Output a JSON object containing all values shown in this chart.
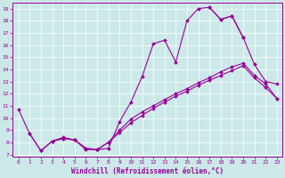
{
  "xlabel": "Windchill (Refroidissement éolien,°C)",
  "bg_color": "#cce8e8",
  "line_color": "#990099",
  "marker": "D",
  "markersize": 2.0,
  "linewidth": 0.8,
  "xlim": [
    -0.5,
    23.5
  ],
  "ylim": [
    6.8,
    19.5
  ],
  "xticks": [
    0,
    1,
    2,
    3,
    4,
    5,
    6,
    7,
    8,
    9,
    10,
    11,
    12,
    13,
    14,
    15,
    16,
    17,
    18,
    19,
    20,
    21,
    22,
    23
  ],
  "yticks": [
    7,
    8,
    9,
    10,
    11,
    12,
    13,
    14,
    15,
    16,
    17,
    18,
    19
  ],
  "series": [
    {
      "x": [
        0,
        1,
        2,
        3,
        4,
        5,
        6,
        7,
        8,
        9,
        10,
        11,
        12,
        13,
        14,
        15,
        16,
        17,
        18,
        19,
        20
      ],
      "y": [
        10.7,
        8.7,
        7.3,
        8.1,
        8.4,
        8.2,
        7.4,
        7.4,
        7.5,
        9.7,
        11.3,
        13.4,
        16.1,
        16.4,
        14.6,
        18.0,
        19.0,
        19.1,
        18.1,
        18.4,
        16.6
      ]
    },
    {
      "x": [
        17,
        18,
        19,
        20,
        21,
        22,
        23
      ],
      "y": [
        19.1,
        18.1,
        18.4,
        16.6,
        14.4,
        13.0,
        12.8
      ]
    },
    {
      "x": [
        1,
        2,
        3,
        4,
        5,
        6,
        7,
        8,
        9,
        10,
        11,
        12,
        13,
        14,
        15,
        16,
        17,
        18,
        19,
        20,
        21,
        22,
        23
      ],
      "y": [
        8.7,
        7.3,
        8.1,
        8.3,
        8.2,
        7.5,
        7.4,
        8.0,
        9.0,
        9.9,
        10.5,
        11.0,
        11.5,
        12.0,
        12.4,
        12.9,
        13.3,
        13.8,
        14.2,
        14.5,
        13.5,
        12.8,
        11.6
      ]
    },
    {
      "x": [
        3,
        4,
        5,
        6,
        7,
        8,
        9,
        10,
        11,
        12,
        13,
        14,
        15,
        16,
        17,
        18,
        19,
        20,
        21,
        22,
        23
      ],
      "y": [
        8.1,
        8.3,
        8.2,
        7.5,
        7.4,
        8.0,
        8.8,
        9.6,
        10.2,
        10.8,
        11.3,
        11.8,
        12.2,
        12.7,
        13.1,
        13.5,
        13.9,
        14.3,
        13.3,
        12.5,
        11.6
      ]
    }
  ]
}
